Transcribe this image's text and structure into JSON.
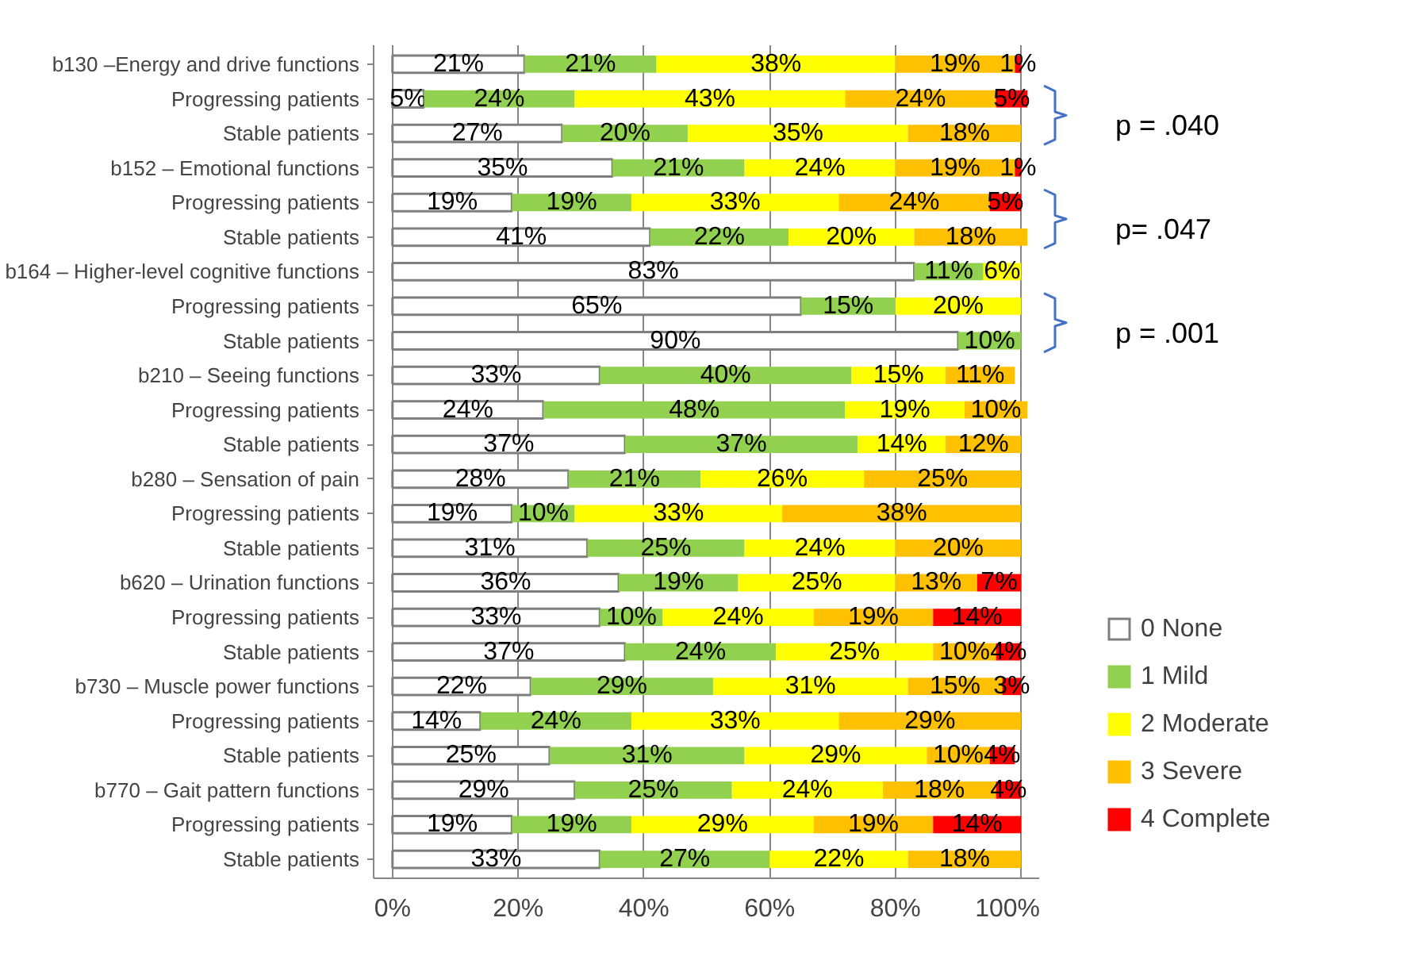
{
  "chart_data": {
    "type": "bar",
    "orientation": "horizontal",
    "stacked": true,
    "data_labels": false,
    "categories": [
      "b130 –Energy and drive functions",
      "Progressing patients",
      "Stable patients",
      "b152 – Emotional functions",
      "Progressing patients",
      "Stable patients",
      "b164 – Higher-level cognitive functions",
      "Progressing patients",
      "Stable patients",
      "b210 – Seeing functions",
      "Progressing patients",
      "Stable patients",
      "b280 – Sensation of pain",
      "Progressing patients",
      "Stable patients",
      "b620 – Urination functions",
      "Progressing patients",
      "Stable patients",
      "b730 – Muscle power functions",
      "Progressing patients",
      "Stable patients",
      "b770 – Gait pattern functions",
      "Progressing patients",
      "Stable patients"
    ],
    "series": [
      {
        "name": "0 None",
        "color": "#ffffff",
        "values": [
          21,
          5,
          27,
          35,
          19,
          41,
          83,
          65,
          90,
          33,
          24,
          37,
          28,
          19,
          31,
          36,
          33,
          37,
          22,
          14,
          25,
          29,
          19,
          33
        ],
        "value_labels": [
          "21%",
          "5%",
          "27%",
          "35%",
          "19%",
          "41%",
          "83%",
          "65%",
          "90%",
          "33%",
          "24%",
          "37%",
          "28%",
          "19%",
          "31%",
          "36%",
          "33%",
          "37%",
          "22%",
          "14%",
          "25%",
          "29%",
          "19%",
          "33%"
        ]
      },
      {
        "name": "1 Mild",
        "color": "#92d050",
        "values": [
          21,
          24,
          20,
          21,
          19,
          22,
          11,
          15,
          10,
          40,
          48,
          37,
          21,
          10,
          25,
          19,
          10,
          24,
          29,
          24,
          31,
          25,
          19,
          27
        ],
        "value_labels": [
          "21%",
          "24%",
          "20%",
          "21%",
          "19%",
          "22%",
          "11%",
          "15%",
          "10%",
          "40%",
          "48%",
          "37%",
          "21%",
          "10%",
          "25%",
          "19%",
          "10%",
          "24%",
          "29%",
          "24%",
          "31%",
          "25%",
          "19%",
          "27%"
        ]
      },
      {
        "name": "2 Moderate",
        "color": "#ffff00",
        "values": [
          38,
          43,
          35,
          24,
          33,
          20,
          6,
          20,
          null,
          15,
          19,
          14,
          26,
          33,
          24,
          25,
          24,
          25,
          31,
          33,
          29,
          24,
          29,
          22
        ],
        "value_labels": [
          "38%",
          "43%",
          "35%",
          "24%",
          "33%",
          "20%",
          "6%",
          "20%",
          null,
          "15%",
          "19%",
          "14%",
          "26%",
          "33%",
          "24%",
          "25%",
          "24%",
          "25%",
          "31%",
          "33%",
          "29%",
          "24%",
          "29%",
          "22%"
        ]
      },
      {
        "name": "3 Severe",
        "color": "#ffc000",
        "values": [
          19,
          24,
          18,
          19,
          24,
          18,
          null,
          null,
          null,
          11,
          10,
          12,
          25,
          38,
          20,
          13,
          19,
          10,
          15,
          29,
          10,
          18,
          19,
          18
        ],
        "value_labels": [
          "19%",
          "24%",
          "18%",
          "19%",
          "24%",
          "18%",
          null,
          null,
          null,
          "11%",
          "10%",
          "12%",
          "25%",
          "38%",
          "20%",
          "13%",
          "19%",
          "10%",
          "15%",
          "29%",
          "10%",
          "18%",
          "19%",
          "18%"
        ]
      },
      {
        "name": "4 Complete",
        "color": "#ff0000",
        "values": [
          1,
          5,
          null,
          1,
          5,
          null,
          null,
          null,
          null,
          null,
          null,
          null,
          null,
          null,
          null,
          7,
          14,
          4,
          3,
          null,
          4,
          4,
          14,
          null
        ],
        "value_labels": [
          "1%",
          "5%",
          null,
          "1%",
          "5%",
          null,
          null,
          null,
          null,
          null,
          null,
          null,
          null,
          null,
          null,
          "7%",
          "14%",
          "4%",
          "3%",
          null,
          "4%",
          "4%",
          "14%",
          null
        ]
      }
    ],
    "xlim": [
      -3,
      103
    ],
    "xticks": [
      {
        "value": 0,
        "label": "0%"
      },
      {
        "value": 20,
        "label": "20%"
      },
      {
        "value": 40,
        "label": "40%"
      },
      {
        "value": 60,
        "label": "60%"
      },
      {
        "value": 80,
        "label": "80%"
      },
      {
        "value": 100,
        "label": "100%"
      }
    ],
    "grid": "x",
    "legend": "right",
    "annotations": [
      "p = .040",
      "p= .047",
      "p = .001"
    ]
  }
}
